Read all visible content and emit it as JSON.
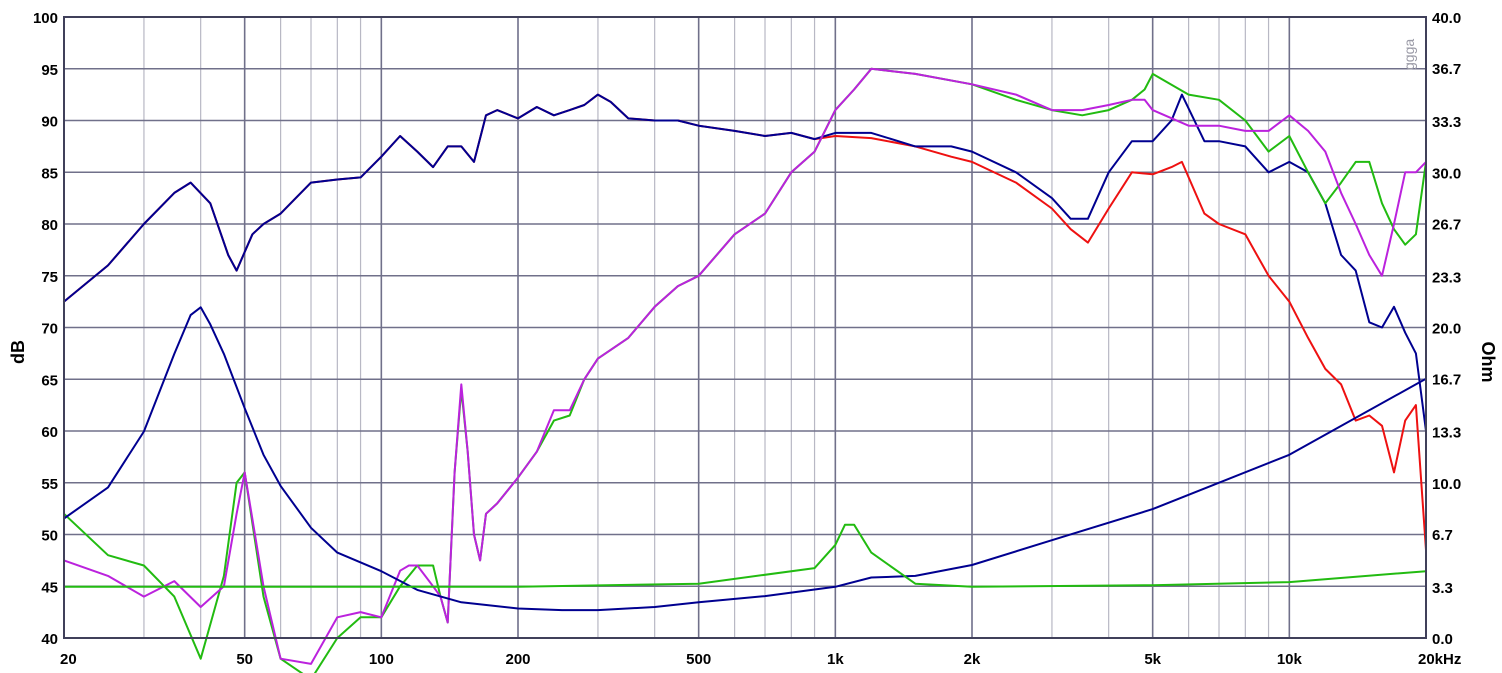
{
  "chart_data": {
    "type": "line",
    "title": "",
    "xlabel": "",
    "ylabel": "dB",
    "y2label": "Ohm",
    "xscale": "log",
    "xlim": [
      20,
      20000
    ],
    "ylim": [
      40,
      100
    ],
    "y2lim": [
      0,
      40
    ],
    "grid": true,
    "x_tick_labels": [
      {
        "value": 20,
        "label": "20"
      },
      {
        "value": 50,
        "label": "50"
      },
      {
        "value": 100,
        "label": "100"
      },
      {
        "value": 200,
        "label": "200"
      },
      {
        "value": 500,
        "label": "500"
      },
      {
        "value": 1000,
        "label": "1k"
      },
      {
        "value": 2000,
        "label": "2k"
      },
      {
        "value": 5000,
        "label": "5k"
      },
      {
        "value": 10000,
        "label": "10k"
      },
      {
        "value": 20000,
        "label": "20kHz"
      }
    ],
    "y_tick_labels": [
      "40",
      "45",
      "50",
      "55",
      "60",
      "65",
      "70",
      "75",
      "80",
      "85",
      "90",
      "95",
      "100"
    ],
    "y2_ticks": [
      0,
      3.3,
      6.7,
      10,
      13.3,
      16.7,
      20,
      23.3,
      26.7,
      30,
      33.3,
      36.7,
      40
    ],
    "y2_tick_labels": [
      "0.0",
      "3.3",
      "6.7",
      "10.0",
      "13.3",
      "16.7",
      "20.0",
      "23.3",
      "26.7",
      "30.0",
      "33.3",
      "36.7",
      "40.0"
    ],
    "corner_mark": "ggga",
    "colors": {
      "red": "#ee1111",
      "navy": "#000090",
      "green": "#22bb11",
      "magenta": "#bb22dd",
      "grid": "#70708a",
      "grid_minor": "#b8b8c4"
    },
    "series": [
      {
        "axis": "left",
        "color": "#ee1111",
        "x": [
          20,
          25,
          30,
          35,
          38,
          42,
          46,
          48,
          52,
          55,
          60,
          70,
          80,
          90,
          100,
          110,
          120,
          130,
          140,
          150,
          160,
          170,
          180,
          200,
          220,
          240,
          260,
          280,
          300,
          320,
          350,
          400,
          450,
          500,
          600,
          700,
          800,
          900,
          1000,
          1200,
          1500,
          1800,
          2000,
          2500,
          3000,
          3300,
          3600,
          4000,
          4500,
          5000,
          5500,
          5800,
          6500,
          7000,
          8000,
          9000,
          10000,
          11000,
          12000,
          13000,
          14000,
          15000,
          16000,
          17000,
          18000,
          19000,
          20000
        ],
        "y": [
          72.5,
          76,
          80,
          83,
          84,
          82,
          77,
          75.5,
          79,
          80,
          81,
          84,
          84.3,
          84.5,
          86.5,
          88.5,
          87,
          85.5,
          87.5,
          87.5,
          86,
          90.5,
          91,
          90.2,
          91.3,
          90.5,
          91,
          91.5,
          92.5,
          91.8,
          90.2,
          90,
          90,
          89.5,
          89,
          88.5,
          88.8,
          88.2,
          88.5,
          88.3,
          87.5,
          86.5,
          86,
          84,
          81.5,
          79.5,
          78.2,
          81.5,
          85,
          84.8,
          85.5,
          86,
          81,
          80,
          79,
          75,
          72.5,
          69,
          66,
          64.5,
          61,
          61.5,
          60.5,
          56,
          61,
          62.5,
          48.5
        ]
      },
      {
        "axis": "left",
        "color": "#000090",
        "x": [
          20,
          25,
          30,
          35,
          38,
          42,
          46,
          48,
          52,
          55,
          60,
          70,
          80,
          90,
          100,
          110,
          120,
          130,
          140,
          150,
          160,
          170,
          180,
          200,
          220,
          240,
          260,
          280,
          300,
          320,
          350,
          400,
          450,
          500,
          600,
          700,
          800,
          900,
          1000,
          1200,
          1500,
          1800,
          2000,
          2500,
          3000,
          3300,
          3600,
          4000,
          4500,
          5000,
          5500,
          5800,
          6500,
          7000,
          8000,
          9000,
          10000,
          11000,
          12000,
          13000,
          14000,
          15000,
          16000,
          17000,
          18000,
          19000,
          20000
        ],
        "y": [
          72.5,
          76,
          80,
          83,
          84,
          82,
          77,
          75.5,
          79,
          80,
          81,
          84,
          84.3,
          84.5,
          86.5,
          88.5,
          87,
          85.5,
          87.5,
          87.5,
          86,
          90.5,
          91,
          90.2,
          91.3,
          90.5,
          91,
          91.5,
          92.5,
          91.8,
          90.2,
          90,
          90,
          89.5,
          89,
          88.5,
          88.8,
          88.2,
          88.8,
          88.8,
          87.5,
          87.5,
          87,
          85,
          82.5,
          80.5,
          80.5,
          85,
          88,
          88,
          90,
          92.5,
          88,
          88,
          87.5,
          85,
          86,
          85,
          82,
          77,
          75.5,
          70.5,
          70,
          72,
          69.5,
          67.5,
          60
        ]
      },
      {
        "axis": "left",
        "color": "#22bb11",
        "x": [
          20,
          25,
          30,
          35,
          40,
          45,
          48,
          50,
          55,
          60,
          70,
          80,
          90,
          100,
          110,
          115,
          120,
          130,
          135,
          140,
          145,
          150,
          155,
          160,
          165,
          170,
          180,
          200,
          220,
          240,
          260,
          280,
          300,
          350,
          400,
          450,
          500,
          600,
          700,
          800,
          900,
          1000,
          1100,
          1200,
          1500,
          2000,
          2500,
          3000,
          3500,
          4000,
          4500,
          4800,
          5000,
          6000,
          7000,
          8000,
          9000,
          10000,
          11000,
          12000,
          13000,
          14000,
          15000,
          16000,
          17000,
          18000,
          19000,
          20000
        ],
        "y": [
          52,
          48,
          47,
          44,
          38,
          46,
          55,
          56,
          44,
          38,
          36,
          40,
          42,
          42,
          45,
          46,
          47,
          47,
          44,
          41.5,
          56,
          64,
          58,
          50,
          47.5,
          52,
          53,
          55.5,
          58,
          61,
          61.5,
          65,
          67,
          69,
          72,
          74,
          75,
          79,
          81,
          85,
          87,
          91,
          93,
          95,
          94.5,
          93.5,
          92,
          91,
          90.5,
          91,
          92,
          93,
          94.5,
          92.5,
          92,
          90,
          87,
          88.5,
          85,
          82,
          84,
          86,
          86,
          82,
          79.5,
          78,
          79,
          86
        ]
      },
      {
        "axis": "left",
        "color": "#bb22dd",
        "x": [
          20,
          25,
          30,
          35,
          40,
          45,
          48,
          50,
          55,
          60,
          70,
          80,
          90,
          100,
          110,
          115,
          120,
          130,
          135,
          140,
          145,
          150,
          155,
          160,
          165,
          170,
          180,
          200,
          220,
          240,
          260,
          280,
          300,
          350,
          400,
          450,
          500,
          600,
          700,
          800,
          900,
          1000,
          1100,
          1200,
          1500,
          2000,
          2500,
          3000,
          3500,
          4000,
          4500,
          4800,
          5000,
          6000,
          7000,
          8000,
          9000,
          10000,
          11000,
          12000,
          13000,
          14000,
          15000,
          16000,
          17000,
          18000,
          19000,
          20000
        ],
        "y": [
          47.5,
          46,
          44,
          45.5,
          43,
          45,
          52,
          56,
          45,
          38,
          37.5,
          42,
          42.5,
          42,
          46.5,
          47,
          47,
          45,
          44,
          41.5,
          56,
          64.5,
          58,
          50,
          47.5,
          52,
          53,
          55.5,
          58,
          62,
          62,
          65,
          67,
          69,
          72,
          74,
          75,
          79,
          81,
          85,
          87,
          91,
          93,
          95,
          94.5,
          93.5,
          92.5,
          91,
          91,
          91.5,
          92,
          92,
          91,
          89.5,
          89.5,
          89,
          89,
          90.5,
          89,
          87,
          83,
          80,
          77,
          75,
          80,
          85,
          85,
          86
        ]
      },
      {
        "axis": "right",
        "color": "#000090",
        "x": [
          20,
          25,
          30,
          35,
          38,
          40,
          42,
          45,
          50,
          55,
          60,
          70,
          80,
          100,
          120,
          150,
          200,
          250,
          300,
          400,
          500,
          700,
          1000,
          1200,
          1500,
          2000,
          3000,
          5000,
          10000,
          20000
        ],
        "y": [
          7.7,
          9.7,
          13.3,
          18.3,
          20.8,
          21.3,
          20.2,
          18.3,
          14.8,
          11.8,
          9.8,
          7.1,
          5.5,
          4.3,
          3.1,
          2.3,
          1.9,
          1.8,
          1.8,
          2,
          2.3,
          2.7,
          3.3,
          3.9,
          4,
          4.7,
          6.3,
          8.3,
          11.8,
          16.7
        ]
      },
      {
        "axis": "right",
        "color": "#22bb11",
        "x": [
          20,
          100,
          200,
          500,
          900,
          1000,
          1050,
          1100,
          1200,
          1500,
          2000,
          5000,
          10000,
          20000
        ],
        "y": [
          3.3,
          3.3,
          3.3,
          3.5,
          4.5,
          6,
          7.3,
          7.3,
          5.5,
          3.5,
          3.3,
          3.4,
          3.6,
          4.3
        ]
      }
    ]
  }
}
